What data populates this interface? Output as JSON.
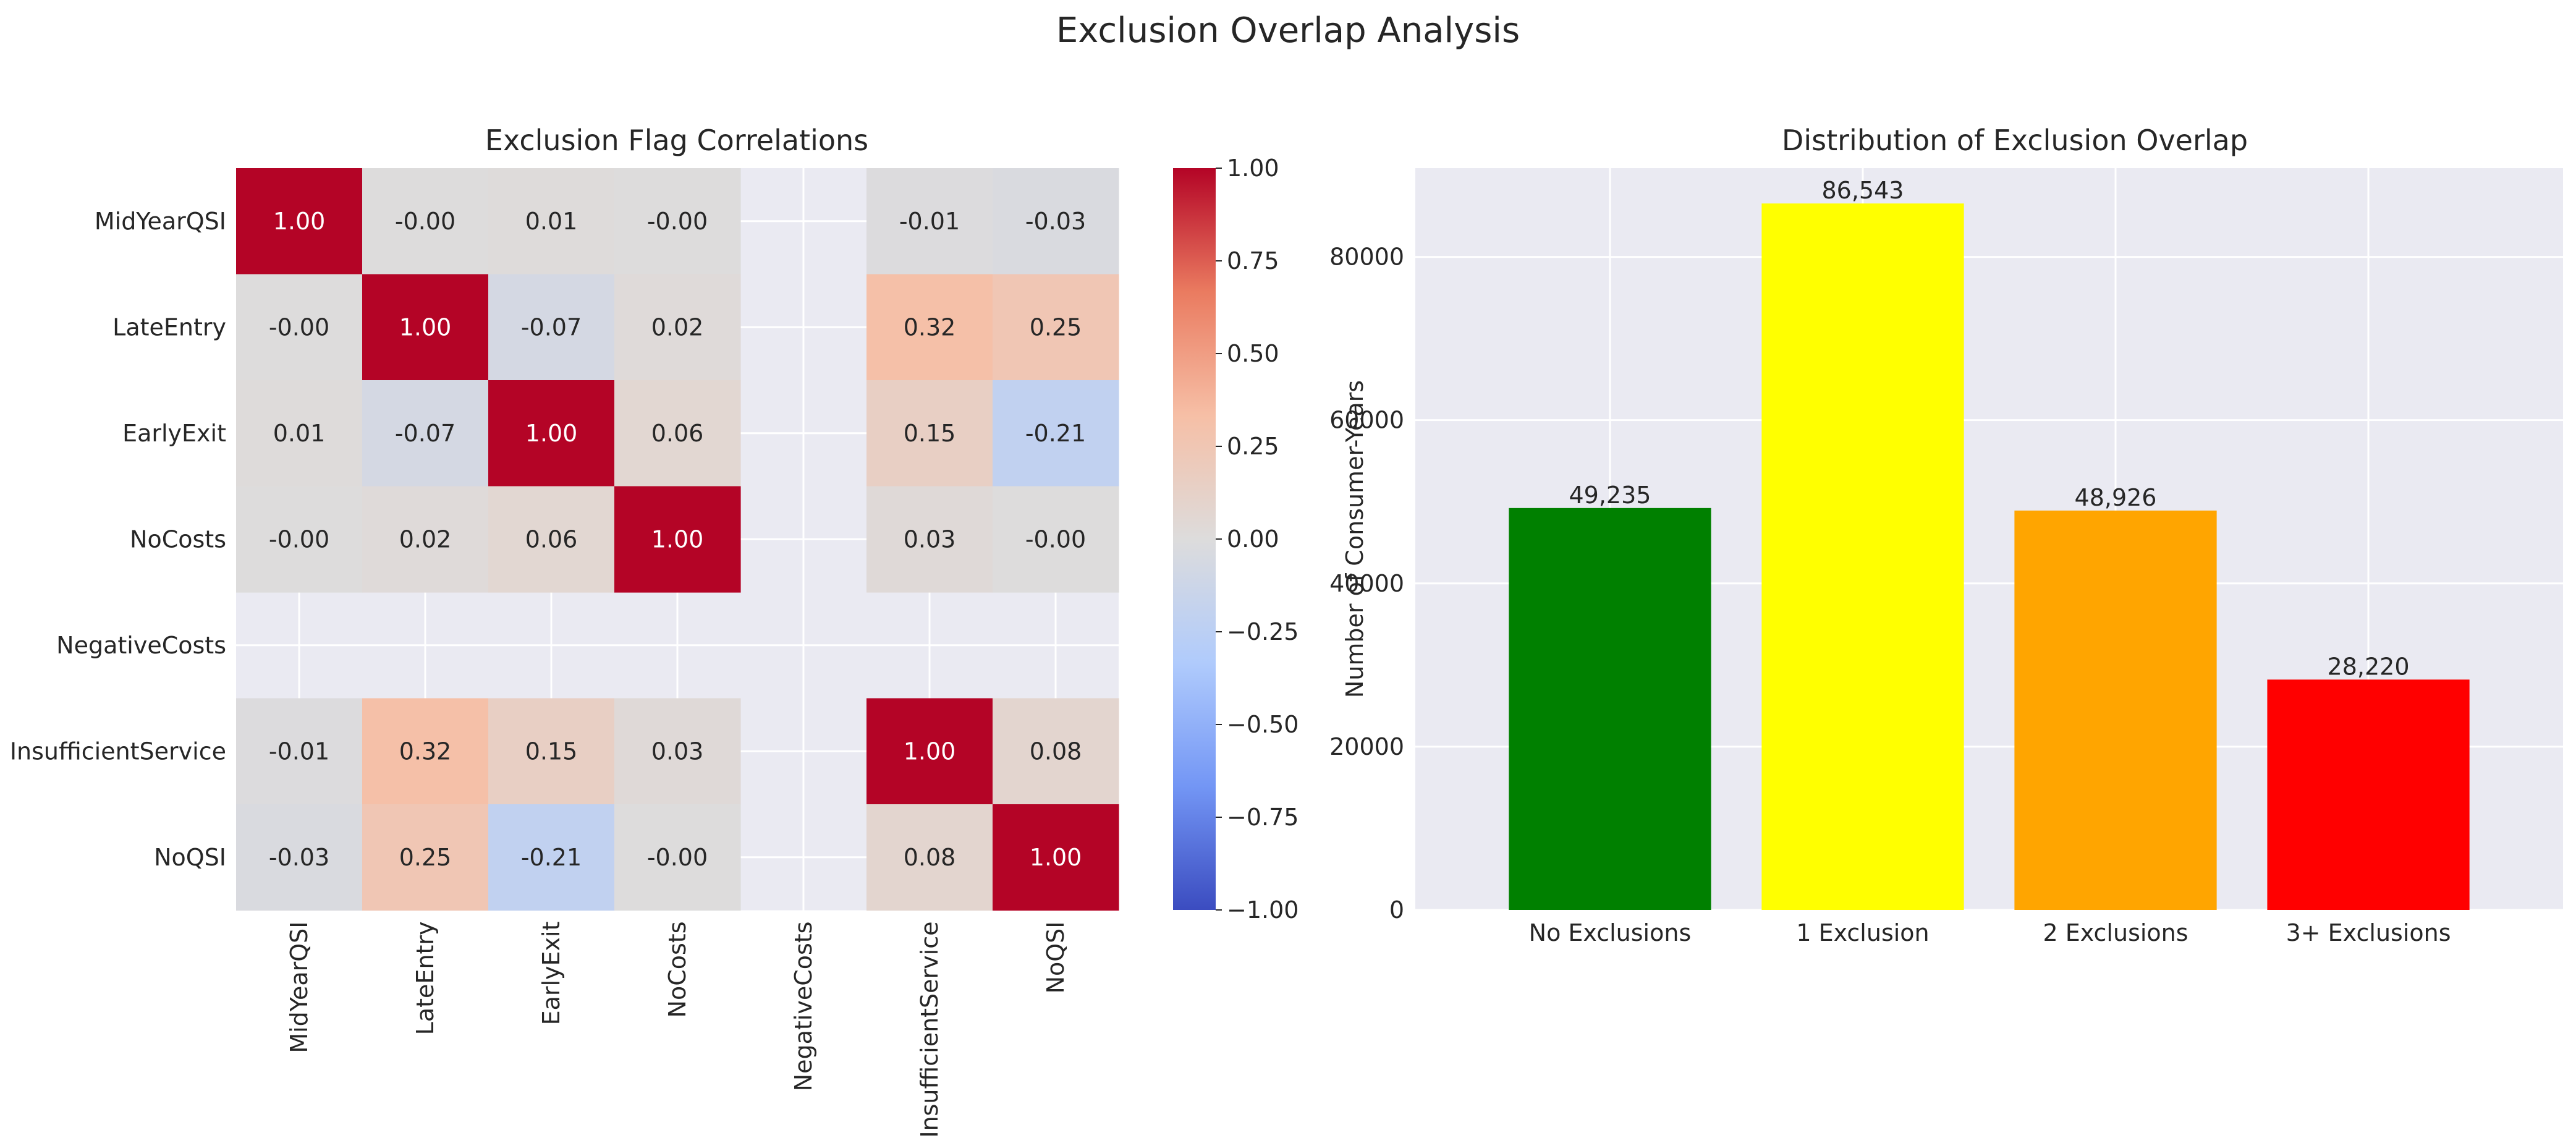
{
  "figure": {
    "title": "Exclusion Overlap Analysis"
  },
  "chart_data": [
    {
      "type": "heatmap",
      "title": "Exclusion Flag Correlations",
      "rows": [
        "MidYearQSI",
        "LateEntry",
        "EarlyExit",
        "NoCosts",
        "NegativeCosts",
        "InsufficientService",
        "NoQSI"
      ],
      "columns": [
        "MidYearQSI",
        "LateEntry",
        "EarlyExit",
        "NoCosts",
        "NegativeCosts",
        "InsufficientService",
        "NoQSI"
      ],
      "values": [
        [
          1.0,
          -0.0,
          0.01,
          -0.0,
          null,
          -0.01,
          -0.03
        ],
        [
          -0.0,
          1.0,
          -0.07,
          0.02,
          null,
          0.32,
          0.25
        ],
        [
          0.01,
          -0.07,
          1.0,
          0.06,
          null,
          0.15,
          -0.21
        ],
        [
          -0.0,
          0.02,
          0.06,
          1.0,
          null,
          0.03,
          -0.0
        ],
        [
          null,
          null,
          null,
          null,
          null,
          null,
          null
        ],
        [
          -0.01,
          0.32,
          0.15,
          0.03,
          null,
          1.0,
          0.08
        ],
        [
          -0.03,
          0.25,
          -0.21,
          -0.0,
          null,
          0.08,
          1.0
        ]
      ],
      "cell_labels": [
        [
          "1.00",
          "-0.00",
          "0.01",
          "-0.00",
          "",
          "-0.01",
          "-0.03"
        ],
        [
          "-0.00",
          "1.00",
          "-0.07",
          "0.02",
          "",
          "0.32",
          "0.25"
        ],
        [
          "0.01",
          "-0.07",
          "1.00",
          "0.06",
          "",
          "0.15",
          "-0.21"
        ],
        [
          "-0.00",
          "0.02",
          "0.06",
          "1.00",
          "",
          "0.03",
          "-0.00"
        ],
        [
          "",
          "",
          "",
          "",
          "",
          "",
          ""
        ],
        [
          "-0.01",
          "0.32",
          "0.15",
          "0.03",
          "",
          "1.00",
          "0.08"
        ],
        [
          "-0.03",
          "0.25",
          "-0.21",
          "-0.00",
          "",
          "0.08",
          "1.00"
        ]
      ],
      "colormap": "coolwarm",
      "colormap_stops": [
        "#3b4cc0",
        "#7396f5",
        "#b0cbfc",
        "#dddcdc",
        "#f6bfa6",
        "#ea7b60",
        "#b40426"
      ],
      "vmin": -1.0,
      "vmax": 1.0,
      "colorbar_ticks": [
        -1.0,
        -0.75,
        -0.5,
        -0.25,
        0.0,
        0.25,
        0.5,
        0.75,
        1.0
      ],
      "colorbar_tick_labels": [
        "−1.00",
        "−0.75",
        "−0.50",
        "−0.25",
        "0.00",
        "0.25",
        "0.50",
        "0.75",
        "1.00"
      ],
      "background": "#eaeaf2"
    },
    {
      "type": "bar",
      "title": "Distribution of Exclusion Overlap",
      "categories": [
        "No Exclusions",
        "1 Exclusion",
        "2 Exclusions",
        "3+ Exclusions"
      ],
      "values": [
        49235,
        86543,
        48926,
        28220
      ],
      "value_labels": [
        "49,235",
        "86,543",
        "48,926",
        "28,220"
      ],
      "colors": [
        "#008000",
        "#ffff00",
        "#ffa500",
        "#ff0000"
      ],
      "xlabel": "",
      "ylabel": "Number of Consumer-Years",
      "ylim": [
        0,
        90872
      ],
      "yticks": [
        0,
        20000,
        40000,
        60000,
        80000
      ],
      "ytick_labels": [
        "0",
        "20000",
        "40000",
        "60000",
        "80000"
      ],
      "grid": true,
      "background": "#eaeaf2"
    }
  ]
}
